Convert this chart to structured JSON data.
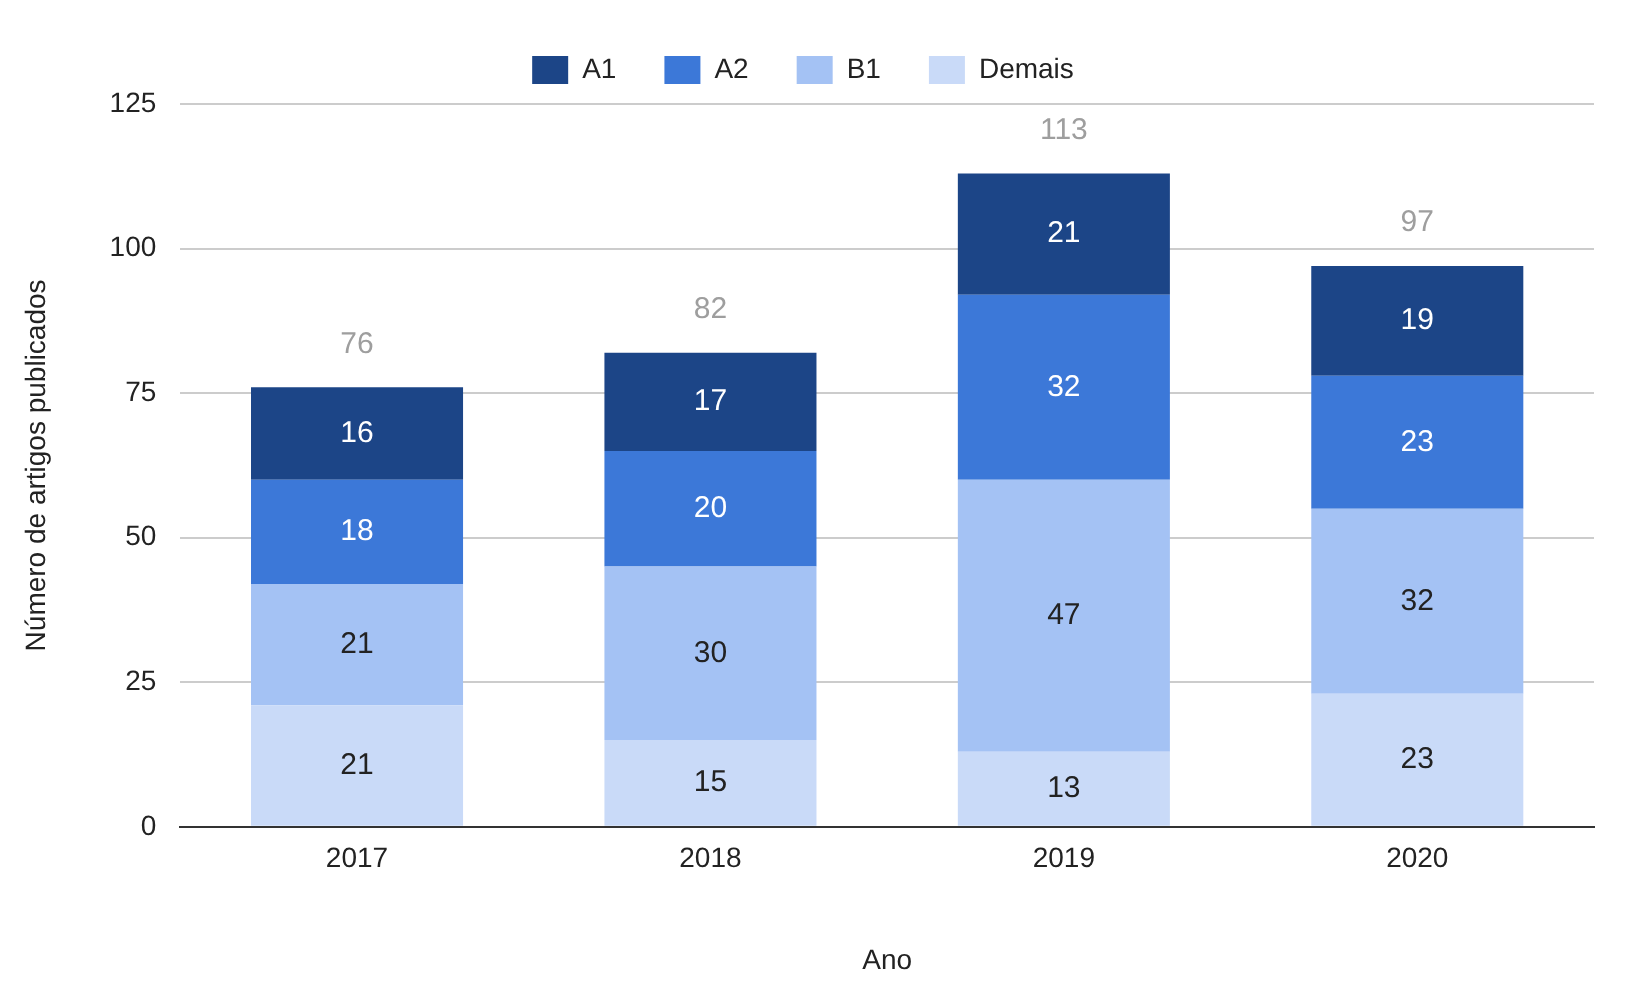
{
  "chart_data": {
    "type": "bar",
    "xlabel": "Ano",
    "ylabel": "Número de artigos publicados",
    "categories": [
      "2017",
      "2018",
      "2019",
      "2020"
    ],
    "series": [
      {
        "name": "Demais",
        "color": "#c9daf8",
        "values": [
          21,
          15,
          13,
          23
        ]
      },
      {
        "name": "B1",
        "color": "#a4c2f4",
        "values": [
          21,
          30,
          47,
          32
        ]
      },
      {
        "name": "A2",
        "color": "#3c78d8",
        "values": [
          18,
          20,
          32,
          23
        ]
      },
      {
        "name": "A1",
        "color": "#1c4587",
        "values": [
          16,
          17,
          21,
          19
        ]
      }
    ],
    "stacked": true,
    "ylim": [
      0,
      125
    ],
    "yticks": [
      0,
      25,
      50,
      75,
      100,
      125
    ],
    "grid": "y",
    "legend": "top",
    "data_labels": true,
    "totals": [
      "76",
      "82",
      "113",
      "97"
    ]
  }
}
